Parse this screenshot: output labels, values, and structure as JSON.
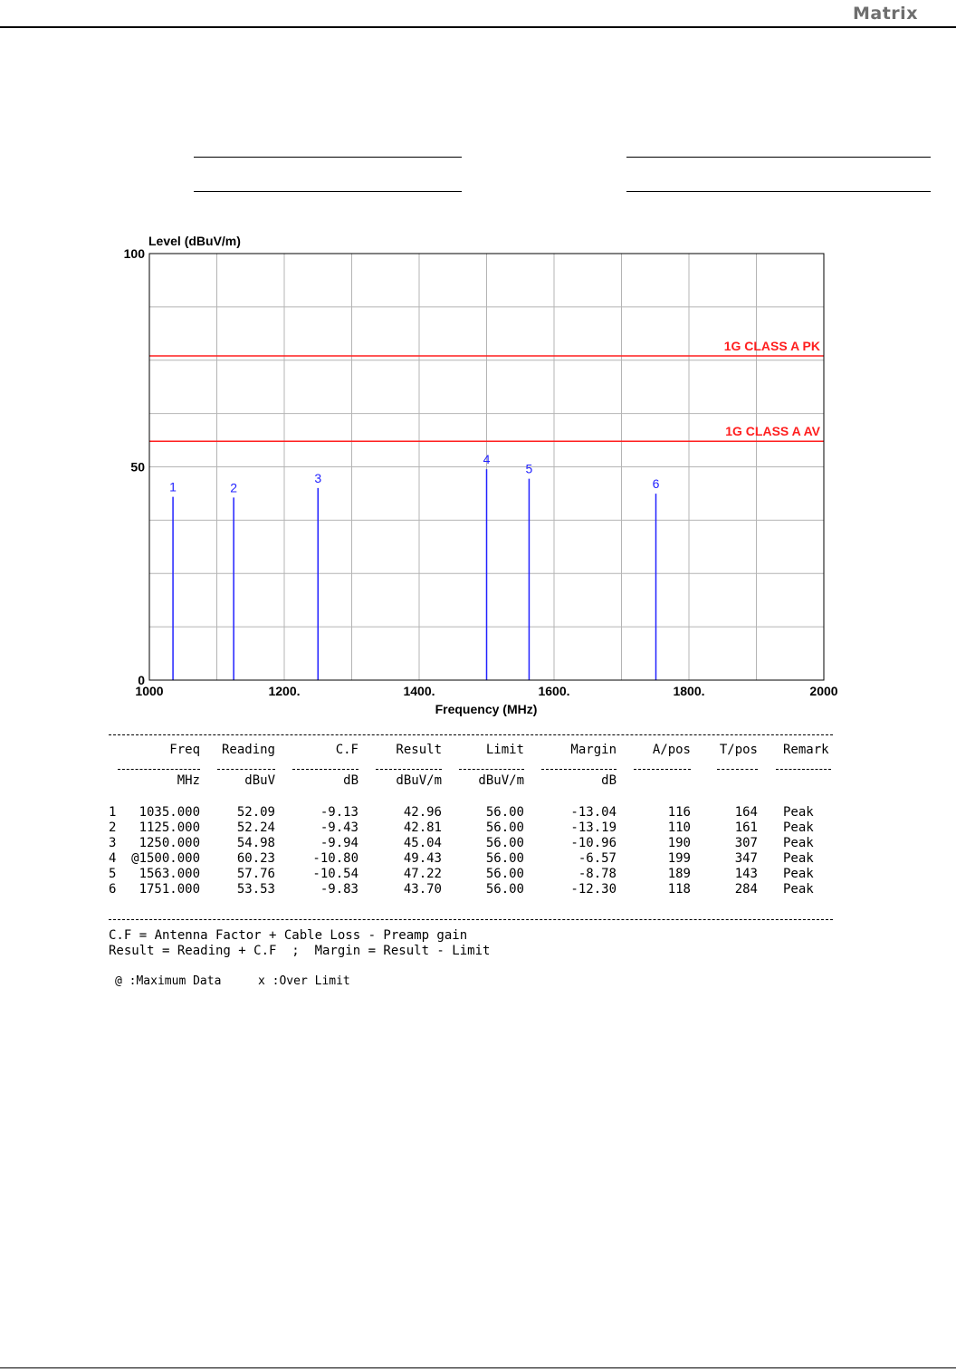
{
  "colors": {
    "limit_line": "#ff1e1e",
    "marker": "#2222ff",
    "grid": "#b4b4b4",
    "frame": "#000000"
  },
  "logo": {
    "text": "Matrix"
  },
  "chart_data": {
    "type": "bar",
    "ylabel": "Level (dBuV/m)",
    "xlabel": "Frequency (MHz)",
    "xlim": [
      1000,
      2000
    ],
    "ylim": [
      0,
      100
    ],
    "x_tick_labels": [
      {
        "value": 1000,
        "label": "1000"
      },
      {
        "value": 1200,
        "label": "1200."
      },
      {
        "value": 1400,
        "label": "1400."
      },
      {
        "value": 1600,
        "label": "1600."
      },
      {
        "value": 1800,
        "label": "1800."
      },
      {
        "value": 2000,
        "label": "2000"
      }
    ],
    "y_tick_labels": [
      {
        "value": 0,
        "label": "0"
      },
      {
        "value": 50,
        "label": "50"
      },
      {
        "value": 100,
        "label": "100"
      }
    ],
    "grid": true,
    "limit_lines": [
      {
        "name": "1G CLASS A PK",
        "value": 76
      },
      {
        "name": "1G CLASS A AV",
        "value": 56
      }
    ],
    "markers": [
      {
        "label": "1",
        "x": 1035,
        "y": 42.96
      },
      {
        "label": "2",
        "x": 1125,
        "y": 42.81
      },
      {
        "label": "3",
        "x": 1250,
        "y": 45.04
      },
      {
        "label": "4",
        "x": 1500,
        "y": 49.43
      },
      {
        "label": "5",
        "x": 1563,
        "y": 47.22
      },
      {
        "label": "6",
        "x": 1751,
        "y": 43.7
      }
    ]
  },
  "table": {
    "headers": [
      "Freq",
      "Reading",
      "C.F",
      "Result",
      "Limit",
      "Margin",
      "A/pos",
      "T/pos",
      "Remark"
    ],
    "units": [
      "MHz",
      "dBuV",
      "dB",
      "dBuV/m",
      "dBuV/m",
      "dB",
      "",
      "",
      ""
    ],
    "rows": [
      {
        "no": "1",
        "freq": " 1035.000",
        "reading": "52.09",
        "cf": "-9.13",
        "result": "42.96",
        "limit": "56.00",
        "margin": "-13.04",
        "apos": "116",
        "tpos": "164",
        "remark": "Peak"
      },
      {
        "no": "2",
        "freq": " 1125.000",
        "reading": "52.24",
        "cf": "-9.43",
        "result": "42.81",
        "limit": "56.00",
        "margin": "-13.19",
        "apos": "110",
        "tpos": "161",
        "remark": "Peak"
      },
      {
        "no": "3",
        "freq": " 1250.000",
        "reading": "54.98",
        "cf": "-9.94",
        "result": "45.04",
        "limit": "56.00",
        "margin": "-10.96",
        "apos": "190",
        "tpos": "307",
        "remark": "Peak"
      },
      {
        "no": "4",
        "freq": "@1500.000",
        "reading": "60.23",
        "cf": "-10.80",
        "result": "49.43",
        "limit": "56.00",
        "margin": "-6.57",
        "apos": "199",
        "tpos": "347",
        "remark": "Peak"
      },
      {
        "no": "5",
        "freq": " 1563.000",
        "reading": "57.76",
        "cf": "-10.54",
        "result": "47.22",
        "limit": "56.00",
        "margin": "-8.78",
        "apos": "189",
        "tpos": "143",
        "remark": "Peak"
      },
      {
        "no": "6",
        "freq": " 1751.000",
        "reading": "53.53",
        "cf": "-9.83",
        "result": "43.70",
        "limit": "56.00",
        "margin": "-12.30",
        "apos": "118",
        "tpos": "284",
        "remark": "Peak"
      }
    ]
  },
  "notes": {
    "line1": "C.F = Antenna Factor + Cable Loss - Preamp gain",
    "line2": "Result = Reading + C.F  ;  Margin = Result - Limit",
    "legend_max": "@ :Maximum Data",
    "legend_over": "x :Over Limit"
  }
}
